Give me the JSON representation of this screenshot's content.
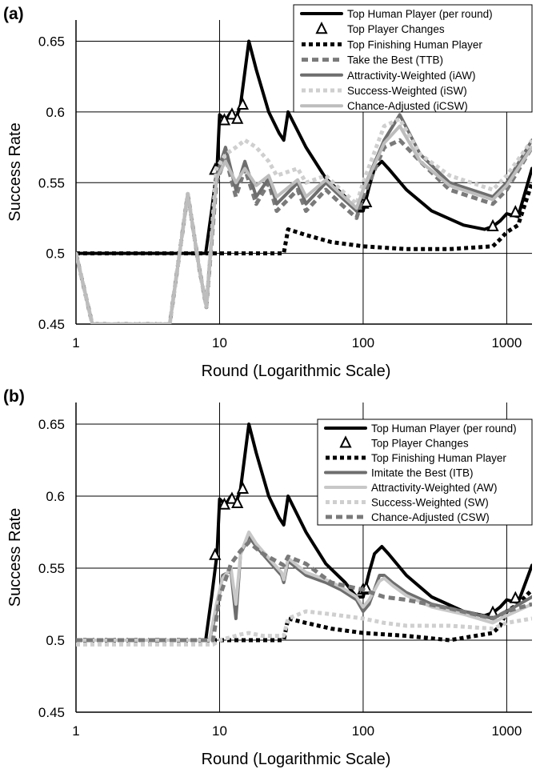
{
  "chart_data": [
    {
      "panel_label": "(a)",
      "type": "line",
      "xlabel": "Round (Logarithmic Scale)",
      "ylabel": "Success Rate",
      "x_scale": "log",
      "xlim": [
        1,
        1500
      ],
      "ylim": [
        0.45,
        0.665
      ],
      "x_ticks": [
        1,
        10,
        100,
        1000
      ],
      "x_tick_labels": [
        "1",
        "10",
        "100",
        "1000"
      ],
      "y_ticks": [
        0.45,
        0.5,
        0.55,
        0.6,
        0.65
      ],
      "y_tick_labels": [
        "0.45",
        "0.5",
        "0.55",
        "0.6",
        "0.65"
      ],
      "grid": true,
      "legend_position": "top-right",
      "series": [
        {
          "name": "Top Human Player (per round)",
          "style": "solid",
          "color": "#000000",
          "x": [
            1,
            8,
            8.8,
            9.6,
            10,
            11,
            12,
            13,
            14,
            16,
            18,
            22,
            26,
            28,
            30,
            40,
            55,
            75,
            90,
            100,
            110,
            120,
            135,
            150,
            200,
            300,
            500,
            700,
            800,
            900,
            1000,
            1200,
            1500
          ],
          "y": [
            0.5,
            0.5,
            0.53,
            0.56,
            0.598,
            0.594,
            0.6,
            0.595,
            0.605,
            0.65,
            0.63,
            0.6,
            0.585,
            0.58,
            0.6,
            0.575,
            0.553,
            0.54,
            0.53,
            0.53,
            0.547,
            0.56,
            0.565,
            0.56,
            0.545,
            0.53,
            0.52,
            0.517,
            0.519,
            0.523,
            0.528,
            0.526,
            0.56
          ]
        },
        {
          "name": "Top Player Changes",
          "style": "marker",
          "color": "#000000",
          "x": [
            9.3,
            10.8,
            12.2,
            13.3,
            14.5,
            100,
            105,
            800,
            1150
          ],
          "y": [
            0.559,
            0.594,
            0.598,
            0.595,
            0.605,
            0.535,
            0.536,
            0.519,
            0.529
          ]
        },
        {
          "name": "Top Finishing Human Player",
          "style": "dotted",
          "color": "#000000",
          "x": [
            1,
            9,
            28,
            30,
            40,
            60,
            100,
            200,
            400,
            800,
            900,
            1000,
            1200,
            1500
          ],
          "y": [
            0.5,
            0.5,
            0.5,
            0.517,
            0.513,
            0.508,
            0.505,
            0.503,
            0.503,
            0.505,
            0.51,
            0.515,
            0.52,
            0.55
          ]
        },
        {
          "name": "Take the Best (TTB)",
          "style": "dashed",
          "color": "#7a7a7a",
          "x": [
            1,
            1.3,
            4.5,
            6,
            7.2,
            8.1,
            9.5,
            11,
            13,
            15,
            18,
            22,
            25,
            35,
            40,
            55,
            70,
            90,
            100,
            140,
            180,
            250,
            400,
            800,
            1000,
            1500
          ],
          "y": [
            0.5,
            0.45,
            0.45,
            0.542,
            0.49,
            0.462,
            0.55,
            0.568,
            0.54,
            0.56,
            0.535,
            0.55,
            0.53,
            0.545,
            0.53,
            0.545,
            0.535,
            0.525,
            0.54,
            0.575,
            0.58,
            0.565,
            0.545,
            0.535,
            0.545,
            0.575
          ]
        },
        {
          "name": "Attractivity-Weighted (iAW)",
          "style": "solid",
          "color": "#6e6e6e",
          "x": [
            1,
            1.3,
            4.5,
            6,
            7.2,
            8.1,
            9.5,
            11,
            13,
            15,
            18,
            22,
            25,
            35,
            40,
            55,
            70,
            90,
            100,
            140,
            180,
            250,
            400,
            800,
            1000,
            1500
          ],
          "y": [
            0.5,
            0.45,
            0.45,
            0.542,
            0.49,
            0.462,
            0.555,
            0.575,
            0.545,
            0.565,
            0.54,
            0.553,
            0.535,
            0.55,
            0.535,
            0.55,
            0.54,
            0.53,
            0.545,
            0.58,
            0.598,
            0.57,
            0.55,
            0.54,
            0.55,
            0.58
          ]
        },
        {
          "name": "Success-Weighted (iSW)",
          "style": "dotted",
          "color": "#cfcfcf",
          "x": [
            1,
            1.3,
            4.5,
            6,
            7.2,
            8.1,
            9.5,
            11,
            13,
            15,
            18,
            22,
            25,
            35,
            40,
            55,
            70,
            90,
            100,
            140,
            180,
            250,
            400,
            800,
            1000,
            1500
          ],
          "y": [
            0.5,
            0.45,
            0.45,
            0.542,
            0.49,
            0.462,
            0.56,
            0.57,
            0.575,
            0.58,
            0.575,
            0.565,
            0.555,
            0.56,
            0.55,
            0.555,
            0.545,
            0.535,
            0.55,
            0.59,
            0.595,
            0.57,
            0.555,
            0.545,
            0.555,
            0.58
          ]
        },
        {
          "name": "Chance-Adjusted (iCSW)",
          "style": "solid",
          "color": "#bdbdbd",
          "x": [
            1,
            1.3,
            4.5,
            6,
            7.2,
            8.1,
            9.5,
            11,
            13,
            15,
            18,
            22,
            25,
            35,
            40,
            55,
            70,
            90,
            100,
            140,
            180,
            250,
            400,
            800,
            1000,
            1500
          ],
          "y": [
            0.5,
            0.45,
            0.45,
            0.542,
            0.49,
            0.462,
            0.553,
            0.565,
            0.55,
            0.56,
            0.548,
            0.555,
            0.54,
            0.552,
            0.54,
            0.552,
            0.542,
            0.532,
            0.545,
            0.578,
            0.59,
            0.565,
            0.548,
            0.538,
            0.548,
            0.575
          ]
        }
      ]
    },
    {
      "panel_label": "(b)",
      "type": "line",
      "xlabel": "Round (Logarithmic Scale)",
      "ylabel": "Success Rate",
      "x_scale": "log",
      "xlim": [
        1,
        1500
      ],
      "ylim": [
        0.45,
        0.665
      ],
      "x_ticks": [
        1,
        10,
        100,
        1000
      ],
      "x_tick_labels": [
        "1",
        "10",
        "100",
        "1000"
      ],
      "y_ticks": [
        0.45,
        0.5,
        0.55,
        0.6,
        0.65
      ],
      "y_tick_labels": [
        "0.45",
        "0.5",
        "0.55",
        "0.6",
        "0.65"
      ],
      "grid": true,
      "legend_position": "top-right",
      "series": [
        {
          "name": "Top Human Player (per round)",
          "style": "solid",
          "color": "#000000",
          "x": [
            1,
            8,
            8.8,
            9.6,
            10,
            11,
            12,
            13,
            14,
            16,
            18,
            22,
            26,
            28,
            30,
            40,
            55,
            75,
            90,
            100,
            110,
            120,
            135,
            150,
            200,
            300,
            500,
            700,
            800,
            900,
            1000,
            1200,
            1500
          ],
          "y": [
            0.5,
            0.5,
            0.53,
            0.56,
            0.598,
            0.594,
            0.6,
            0.595,
            0.605,
            0.65,
            0.63,
            0.6,
            0.585,
            0.58,
            0.6,
            0.575,
            0.553,
            0.54,
            0.53,
            0.53,
            0.547,
            0.56,
            0.565,
            0.56,
            0.545,
            0.53,
            0.52,
            0.517,
            0.519,
            0.523,
            0.528,
            0.526,
            0.552
          ]
        },
        {
          "name": "Top Player Changes",
          "style": "marker",
          "color": "#000000",
          "x": [
            9.3,
            10.8,
            12.2,
            13.3,
            14.5,
            100,
            105,
            800,
            1150
          ],
          "y": [
            0.559,
            0.594,
            0.598,
            0.595,
            0.605,
            0.535,
            0.536,
            0.519,
            0.529
          ]
        },
        {
          "name": "Top Finishing Human Player",
          "style": "dotted",
          "color": "#000000",
          "x": [
            1,
            9,
            28,
            30,
            40,
            60,
            100,
            200,
            400,
            800,
            900,
            1000,
            1200,
            1500
          ],
          "y": [
            0.5,
            0.5,
            0.5,
            0.515,
            0.512,
            0.508,
            0.505,
            0.503,
            0.5,
            0.505,
            0.51,
            0.52,
            0.525,
            0.535
          ]
        },
        {
          "name": "Imitate the Best (ITB)",
          "style": "solid",
          "color": "#6e6e6e",
          "x": [
            1,
            8.5,
            9.5,
            10.5,
            12,
            13,
            14,
            16,
            18,
            22,
            27,
            28,
            30,
            40,
            55,
            70,
            90,
            100,
            110,
            130,
            140,
            160,
            200,
            300,
            500,
            800,
            1000,
            1500
          ],
          "y": [
            0.5,
            0.5,
            0.52,
            0.545,
            0.548,
            0.515,
            0.56,
            0.572,
            0.565,
            0.555,
            0.545,
            0.54,
            0.555,
            0.545,
            0.54,
            0.535,
            0.528,
            0.52,
            0.525,
            0.545,
            0.545,
            0.54,
            0.533,
            0.525,
            0.52,
            0.515,
            0.52,
            0.53
          ]
        },
        {
          "name": "Attractivity-Weighted (AW)",
          "style": "solid",
          "color": "#c8c8c8",
          "x": [
            1,
            8.5,
            9.5,
            10.5,
            12,
            13,
            14,
            16,
            18,
            22,
            27,
            28,
            30,
            40,
            55,
            70,
            90,
            100,
            110,
            130,
            140,
            160,
            200,
            300,
            500,
            800,
            1000,
            1500
          ],
          "y": [
            0.5,
            0.5,
            0.525,
            0.543,
            0.55,
            0.525,
            0.56,
            0.575,
            0.567,
            0.557,
            0.547,
            0.542,
            0.557,
            0.547,
            0.542,
            0.537,
            0.53,
            0.523,
            0.528,
            0.541,
            0.543,
            0.538,
            0.531,
            0.523,
            0.518,
            0.512,
            0.517,
            0.525
          ]
        },
        {
          "name": "Success-Weighted (SW)",
          "style": "dotted",
          "color": "#cfcfcf",
          "x": [
            1,
            9,
            10,
            12,
            14,
            16,
            20,
            28,
            30,
            40,
            60,
            100,
            140,
            200,
            400,
            800,
            1000,
            1500
          ],
          "y": [
            0.497,
            0.497,
            0.5,
            0.502,
            0.504,
            0.505,
            0.503,
            0.503,
            0.515,
            0.52,
            0.518,
            0.515,
            0.512,
            0.51,
            0.51,
            0.508,
            0.512,
            0.515
          ]
        },
        {
          "name": "Chance-Adjusted (CSW)",
          "style": "dashed",
          "color": "#7a7a7a",
          "x": [
            1,
            9,
            10,
            12,
            14,
            16,
            20,
            28,
            30,
            40,
            60,
            100,
            140,
            200,
            400,
            800,
            1000,
            1500
          ],
          "y": [
            0.5,
            0.5,
            0.53,
            0.553,
            0.562,
            0.568,
            0.56,
            0.552,
            0.558,
            0.553,
            0.54,
            0.535,
            0.53,
            0.528,
            0.522,
            0.515,
            0.52,
            0.525
          ]
        }
      ]
    }
  ]
}
